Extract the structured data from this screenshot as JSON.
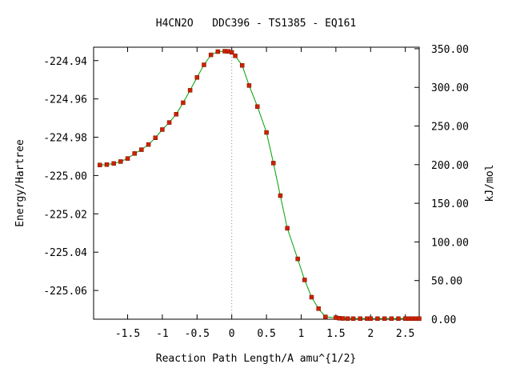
{
  "chart_data": {
    "type": "line",
    "title": "H4CN2O   DDC396 - TS1385 - EQ161",
    "xlabel": "Reaction Path Length/A amu^{1/2}",
    "ylabel": "Energy/Hartree",
    "y2label": "kJ/mol",
    "xlim": [
      -1.99,
      2.7
    ],
    "ylim": [
      -225.075,
      -224.933
    ],
    "y2lim": [
      0,
      352
    ],
    "x_ticks": [
      -1.5,
      -1,
      -0.5,
      0,
      0.5,
      1,
      1.5,
      2,
      2.5
    ],
    "x_tick_labels": [
      "-1.5",
      "-1",
      "-0.5",
      "0",
      "0.5",
      "1",
      "1.5",
      "2",
      "2.5"
    ],
    "y_ticks": [
      -224.94,
      -224.96,
      -224.98,
      -225.0,
      -225.02,
      -225.04,
      -225.06
    ],
    "y_tick_labels": [
      "-224.94",
      "-224.96",
      "-224.98",
      "-225.00",
      "-225.02",
      "-225.04",
      "-225.06"
    ],
    "y2_ticks": [
      350,
      300,
      250,
      200,
      150,
      100,
      50,
      0
    ],
    "y2_tick_labels": [
      "350.00",
      "300.00",
      "250.00",
      "200.00",
      "150.00",
      "100.00",
      "50.00",
      "0.00"
    ],
    "ts_marker_x": 0,
    "grid": false,
    "legend": "none",
    "colors": {
      "line": "#00a000",
      "points": "#cc2200",
      "marker_line": "#888888"
    },
    "series": [
      {
        "x": [
          -1.9,
          -1.8,
          -1.7,
          -1.6,
          -1.5,
          -1.4,
          -1.3,
          -1.2,
          -1.1,
          -1.0,
          -0.9,
          -0.8,
          -0.7,
          -0.6,
          -0.5,
          -0.4,
          -0.3,
          -0.2,
          -0.1,
          -0.05,
          0.0,
          0.05,
          0.15,
          0.25,
          0.37,
          0.5,
          0.6,
          0.7,
          0.8,
          0.95,
          1.05,
          1.15,
          1.25,
          1.35,
          1.5,
          1.55,
          1.6,
          1.67,
          1.75,
          1.85,
          1.95,
          2.0,
          2.1,
          2.2,
          2.3,
          2.4,
          2.5,
          2.55,
          2.6,
          2.65,
          2.7
        ],
        "y": [
          -224.9945,
          -224.9943,
          -224.9937,
          -224.9927,
          -224.9911,
          -224.9885,
          -224.9865,
          -224.9838,
          -224.9803,
          -224.976,
          -224.9723,
          -224.968,
          -224.962,
          -224.9555,
          -224.9488,
          -224.9422,
          -224.937,
          -224.9353,
          -224.9351,
          -224.9352,
          -224.9357,
          -224.9375,
          -224.9425,
          -224.953,
          -224.964,
          -224.9775,
          -224.9935,
          -225.0105,
          -225.0275,
          -225.0435,
          -225.0545,
          -225.0635,
          -225.0695,
          -225.0738,
          -225.0742,
          -225.0745,
          -225.0746,
          -225.0747,
          -225.0747,
          -225.0747,
          -225.0747,
          -225.0747,
          -225.0747,
          -225.0747,
          -225.0747,
          -225.0747,
          -225.0747,
          -225.0747,
          -225.0747,
          -225.0747,
          -225.0747
        ]
      }
    ]
  }
}
